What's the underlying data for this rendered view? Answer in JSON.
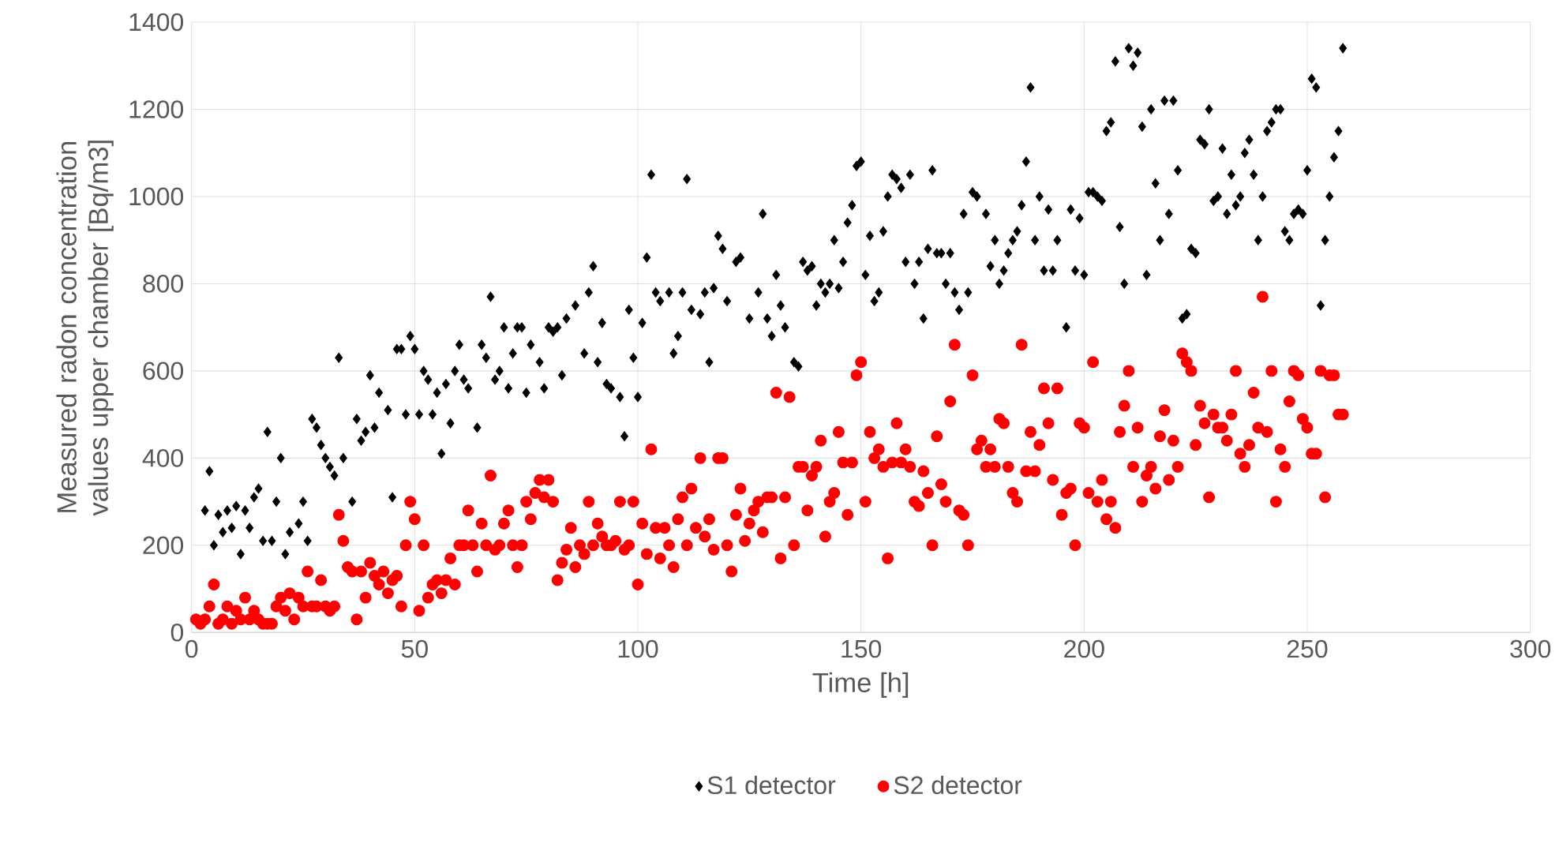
{
  "chart_data": {
    "type": "scatter",
    "xlabel": "Time [h]",
    "ylabel": "Measured radon concentration values upper chamber [Bq/m3]",
    "xlim": [
      0,
      300
    ],
    "ylim": [
      0,
      1400
    ],
    "xticks": [
      0,
      50,
      100,
      150,
      200,
      250,
      300
    ],
    "yticks": [
      0,
      200,
      400,
      600,
      800,
      1000,
      1200,
      1400
    ],
    "grid": true,
    "legend": "bottom",
    "series": [
      {
        "name": "S1 detector",
        "color": "#000000",
        "marker": "diamond",
        "x": [
          3,
          4,
          5,
          6,
          7,
          8,
          9,
          10,
          11,
          12,
          13,
          14,
          15,
          16,
          17,
          18,
          19,
          20,
          21,
          22,
          24,
          25,
          26,
          27,
          28,
          29,
          30,
          31,
          32,
          33,
          34,
          36,
          37,
          38,
          39,
          40,
          41,
          42,
          44,
          45,
          46,
          47,
          48,
          49,
          50,
          51,
          52,
          53,
          54,
          55,
          56,
          57,
          58,
          59,
          60,
          61,
          62,
          64,
          65,
          66,
          67,
          68,
          69,
          70,
          71,
          72,
          73,
          74,
          75,
          76,
          78,
          79,
          80,
          81,
          82,
          83,
          84,
          86,
          88,
          89,
          90,
          91,
          92,
          93,
          94,
          96,
          97,
          98,
          99,
          100,
          101,
          102,
          103,
          104,
          105,
          107,
          108,
          109,
          110,
          111,
          112,
          114,
          115,
          116,
          117,
          118,
          119,
          120,
          122,
          123,
          125,
          127,
          128,
          129,
          130,
          131,
          132,
          133,
          135,
          136,
          137,
          138,
          139,
          140,
          141,
          142,
          143,
          144,
          145,
          146,
          147,
          148,
          149,
          150,
          151,
          152,
          153,
          154,
          155,
          156,
          157,
          158,
          159,
          160,
          161,
          162,
          163,
          164,
          165,
          166,
          167,
          168,
          169,
          170,
          171,
          172,
          173,
          174,
          175,
          176,
          178,
          179,
          180,
          181,
          182,
          183,
          184,
          185,
          186,
          187,
          188,
          189,
          190,
          191,
          192,
          193,
          194,
          196,
          197,
          198,
          199,
          200,
          201,
          202,
          203,
          204,
          205,
          206,
          207,
          208,
          209,
          210,
          211,
          212,
          213,
          214,
          215,
          216,
          217,
          218,
          219,
          220,
          221,
          222,
          223,
          224,
          225,
          226,
          227,
          228,
          229,
          230,
          231,
          232,
          233,
          234,
          235,
          236,
          237,
          238,
          239,
          240,
          241,
          242,
          243,
          244,
          245,
          246,
          247,
          248,
          249,
          250,
          251,
          252,
          253,
          254,
          255,
          256,
          257,
          258
        ],
        "values": [
          280,
          370,
          200,
          270,
          230,
          280,
          240,
          290,
          180,
          280,
          240,
          310,
          330,
          210,
          460,
          210,
          300,
          400,
          180,
          230,
          250,
          300,
          210,
          490,
          470,
          430,
          400,
          380,
          360,
          630,
          400,
          300,
          490,
          440,
          460,
          590,
          470,
          550,
          510,
          310,
          650,
          650,
          500,
          680,
          650,
          500,
          600,
          580,
          500,
          550,
          410,
          570,
          480,
          600,
          660,
          580,
          560,
          470,
          660,
          630,
          770,
          580,
          600,
          700,
          560,
          640,
          700,
          700,
          550,
          660,
          620,
          560,
          700,
          690,
          700,
          590,
          720,
          750,
          640,
          780,
          840,
          620,
          710,
          570,
          560,
          540,
          450,
          740,
          630,
          540,
          710,
          860,
          1050,
          780,
          760,
          780,
          640,
          680,
          780,
          1040,
          740,
          730,
          780,
          620,
          790,
          910,
          880,
          760,
          850,
          860,
          720,
          780,
          960,
          720,
          680,
          820,
          750,
          700,
          620,
          610,
          850,
          830,
          840,
          750,
          800,
          780,
          800,
          900,
          790,
          850,
          940,
          980,
          1070,
          1080,
          820,
          910,
          760,
          780,
          920,
          1000,
          1050,
          1040,
          1020,
          850,
          1050,
          800,
          850,
          720,
          880,
          1060,
          870,
          870,
          800,
          870,
          780,
          740,
          960,
          780,
          1010,
          1000,
          960,
          840,
          900,
          800,
          830,
          870,
          900,
          920,
          980,
          1080,
          1250,
          900,
          1000,
          830,
          970,
          830,
          900,
          700,
          970,
          830,
          950,
          820,
          1010,
          1010,
          1000,
          990,
          1150,
          1170,
          1310,
          930,
          800,
          1340,
          1300,
          1330,
          1160,
          820,
          1200,
          1030,
          900,
          1220,
          960,
          1220,
          1060,
          720,
          730,
          880,
          870,
          1130,
          1120,
          1200,
          990,
          1000,
          1110,
          960,
          1050,
          980,
          1000,
          1100,
          1130,
          1050,
          900,
          1000,
          1150,
          1170,
          1200,
          1200,
          920,
          900,
          960,
          970,
          960,
          1060,
          1270,
          1250,
          750,
          900,
          1000,
          1090,
          1150,
          1340
        ]
      },
      {
        "name": "S2 detector",
        "color": "#ff0000",
        "marker": "circle",
        "x": [
          1,
          2,
          3,
          4,
          5,
          6,
          7,
          8,
          9,
          10,
          11,
          12,
          13,
          14,
          15,
          16,
          17,
          18,
          19,
          20,
          21,
          22,
          23,
          24,
          25,
          26,
          27,
          28,
          29,
          30,
          31,
          32,
          33,
          34,
          35,
          36,
          37,
          38,
          39,
          40,
          41,
          42,
          43,
          44,
          45,
          46,
          47,
          48,
          49,
          50,
          51,
          52,
          53,
          54,
          55,
          56,
          57,
          58,
          59,
          60,
          61,
          62,
          63,
          64,
          65,
          66,
          67,
          68,
          69,
          70,
          71,
          72,
          73,
          74,
          75,
          76,
          77,
          78,
          79,
          80,
          81,
          82,
          83,
          84,
          85,
          86,
          87,
          88,
          89,
          90,
          91,
          92,
          93,
          94,
          95,
          96,
          97,
          98,
          99,
          100,
          101,
          102,
          103,
          104,
          105,
          106,
          107,
          108,
          109,
          110,
          111,
          112,
          113,
          114,
          115,
          116,
          117,
          118,
          119,
          120,
          121,
          122,
          123,
          124,
          125,
          126,
          127,
          128,
          129,
          130,
          131,
          132,
          133,
          134,
          135,
          136,
          137,
          138,
          139,
          140,
          141,
          142,
          143,
          144,
          145,
          146,
          147,
          148,
          149,
          150,
          151,
          152,
          153,
          154,
          155,
          156,
          157,
          158,
          159,
          160,
          161,
          162,
          163,
          164,
          165,
          166,
          167,
          168,
          169,
          170,
          171,
          172,
          173,
          174,
          175,
          176,
          177,
          178,
          179,
          180,
          181,
          182,
          183,
          184,
          185,
          186,
          187,
          188,
          189,
          190,
          191,
          192,
          193,
          194,
          195,
          196,
          197,
          198,
          199,
          200,
          201,
          202,
          203,
          204,
          205,
          206,
          207,
          208,
          209,
          210,
          211,
          212,
          213,
          214,
          215,
          216,
          217,
          218,
          219,
          220,
          221,
          222,
          223,
          224,
          225,
          226,
          227,
          228,
          229,
          230,
          231,
          232,
          233,
          234,
          235,
          236,
          237,
          238,
          239,
          240,
          241,
          242,
          243,
          244,
          245,
          246,
          247,
          248,
          249,
          250,
          251,
          252,
          253,
          254,
          255,
          256,
          257,
          258
        ],
        "values": [
          30,
          20,
          30,
          60,
          110,
          20,
          30,
          60,
          20,
          50,
          30,
          80,
          30,
          50,
          30,
          20,
          20,
          20,
          60,
          80,
          50,
          90,
          30,
          80,
          60,
          140,
          60,
          60,
          120,
          60,
          50,
          60,
          270,
          210,
          150,
          140,
          30,
          140,
          80,
          160,
          130,
          110,
          140,
          90,
          120,
          130,
          60,
          200,
          300,
          260,
          50,
          200,
          80,
          110,
          120,
          90,
          120,
          170,
          110,
          200,
          200,
          280,
          200,
          140,
          250,
          200,
          360,
          190,
          200,
          250,
          280,
          200,
          150,
          200,
          300,
          260,
          320,
          350,
          310,
          350,
          300,
          120,
          160,
          190,
          240,
          150,
          200,
          180,
          300,
          200,
          250,
          220,
          200,
          200,
          210,
          300,
          190,
          200,
          300,
          110,
          250,
          180,
          420,
          240,
          170,
          240,
          200,
          150,
          260,
          310,
          200,
          330,
          240,
          400,
          220,
          260,
          190,
          400,
          400,
          200,
          140,
          270,
          330,
          210,
          250,
          280,
          300,
          230,
          310,
          310,
          550,
          170,
          310,
          540,
          200,
          380,
          380,
          280,
          360,
          380,
          440,
          220,
          300,
          320,
          460,
          390,
          270,
          390,
          590,
          620,
          300,
          460,
          400,
          420,
          380,
          170,
          390,
          480,
          390,
          420,
          380,
          300,
          290,
          370,
          320,
          200,
          450,
          340,
          300,
          530,
          660,
          280,
          270,
          200,
          590,
          420,
          440,
          380,
          420,
          380,
          490,
          480,
          380,
          320,
          300,
          660,
          370,
          460,
          370,
          430,
          560,
          480,
          350,
          560,
          270,
          320,
          330,
          200,
          480,
          470,
          320,
          620,
          300,
          350,
          260,
          300,
          240,
          460,
          520,
          600,
          380,
          470,
          300,
          360,
          380,
          330,
          450,
          510,
          350,
          440,
          380,
          640,
          620,
          600,
          430,
          520,
          480,
          310,
          500,
          470,
          470,
          440,
          500,
          600,
          410,
          380,
          430,
          550,
          470,
          770,
          460,
          600,
          300,
          420,
          380,
          530,
          600,
          590,
          490,
          470,
          410,
          410,
          600,
          310,
          590,
          590,
          500,
          500
        ]
      }
    ]
  }
}
